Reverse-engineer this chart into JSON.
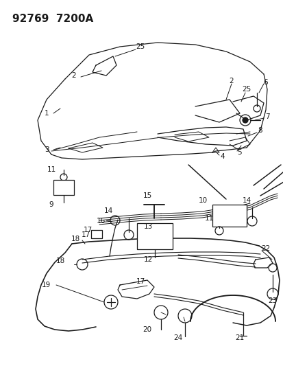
{
  "title": "92769  7200A",
  "background_color": "#ffffff",
  "line_color": "#1a1a1a",
  "title_fontsize": 11,
  "label_fontsize": 7.5,
  "fig_width": 4.14,
  "fig_height": 5.33,
  "dpi": 100
}
